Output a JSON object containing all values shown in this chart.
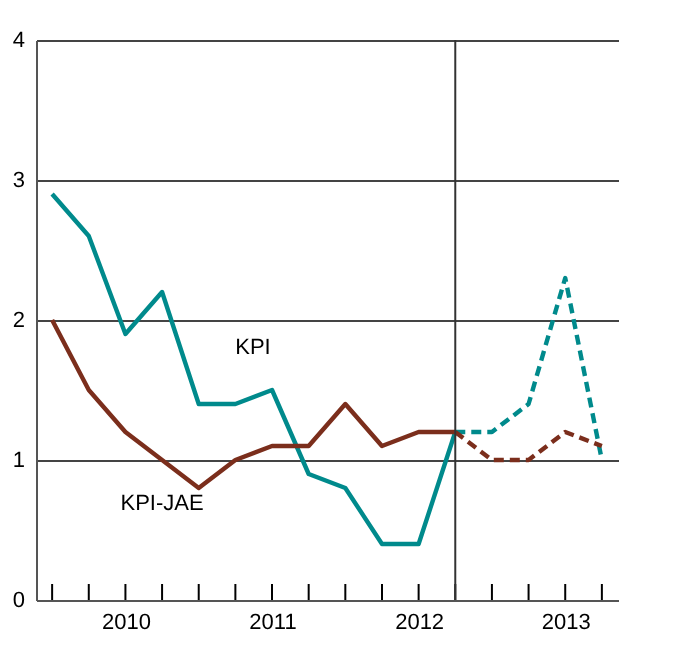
{
  "chart_data": {
    "type": "line",
    "x": [
      2009.5,
      2009.75,
      2010,
      2010.25,
      2010.5,
      2010.75,
      2011,
      2011.25,
      2011.5,
      2011.75,
      2012,
      2012.25
    ],
    "series": [
      {
        "name": "KPI",
        "color": "#008a8c",
        "line_style": "solid",
        "values": [
          2.9,
          2.6,
          1.9,
          2.2,
          1.4,
          1.4,
          1.5,
          0.9,
          0.8,
          0.4,
          0.4,
          1.2
        ]
      },
      {
        "name": "KPI-JAE",
        "color": "#7b2e1c",
        "line_style": "solid",
        "values": [
          2.0,
          1.5,
          1.2,
          1.0,
          0.8,
          1.0,
          1.1,
          1.1,
          1.4,
          1.1,
          1.2,
          1.2
        ]
      },
      {
        "color": "#008a8c",
        "line_style": "dashed",
        "x": [
          2012.25,
          2012.5,
          2012.75,
          2013,
          2013.25
        ],
        "values": [
          1.2,
          1.2,
          1.4,
          2.3,
          1.0
        ]
      },
      {
        "color": "#7b2e1c",
        "line_style": "dashed",
        "x": [
          2012.25,
          2012.5,
          2012.75,
          2013,
          2013.25
        ],
        "values": [
          1.2,
          1.0,
          1.0,
          1.2,
          1.1
        ]
      }
    ],
    "xlim": [
      2009.39,
      2013.36
    ],
    "xticks": [
      {
        "value": 2009.5,
        "label": null
      },
      {
        "value": 2009.75,
        "label": null
      },
      2010,
      {
        "value": 2010.25,
        "label": null
      },
      {
        "value": 2010.5,
        "label": null
      },
      {
        "value": 2010.75,
        "label": null
      },
      2011,
      {
        "value": 2011.25,
        "label": null
      },
      {
        "value": 2011.5,
        "label": null
      },
      {
        "value": 2011.75,
        "label": null
      },
      2012,
      {
        "value": 2012.25,
        "label": null
      },
      {
        "value": 2012.5,
        "label": null
      },
      {
        "value": 2012.75,
        "label": null
      },
      2013,
      {
        "value": 2013.25,
        "label": null
      }
    ],
    "ylim": [
      0,
      4
    ],
    "yticks": [
      0,
      1,
      2,
      3,
      4
    ],
    "grid": "y",
    "ref_lines": [
      {
        "axis": "x",
        "value": 2012.25,
        "color": "#333333"
      }
    ]
  }
}
